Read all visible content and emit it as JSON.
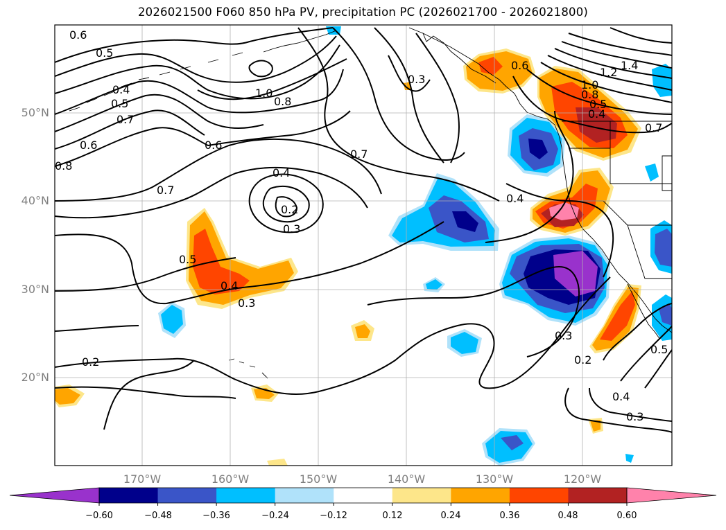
{
  "title": "2026021500 F060 850 hPa PV, precipitation PC (2026021700 - 2026021800)",
  "map": {
    "lat_labels": [
      "50°N",
      "40°N",
      "30°N",
      "20°N"
    ],
    "lon_labels": [
      "170°W",
      "160°W",
      "150°W",
      "140°W",
      "130°W",
      "120°W"
    ],
    "extent": {
      "lon_min": -180,
      "lon_max": -110,
      "lat_min": 10,
      "lat_max": 60
    },
    "contour_labels": [
      "0.6",
      "0.5",
      "0.4",
      "0.5",
      "0.7",
      "0.6",
      "0.8",
      "1.0",
      "0.8",
      "0.6",
      "0.7",
      "0.4",
      "0.2",
      "0.3",
      "0.7",
      "0.5",
      "0.4",
      "0.3",
      "0.2",
      "0.3",
      "0.6",
      "1.2",
      "1.4",
      "1.0",
      "0.8",
      "0.5",
      "0.4",
      "0.7",
      "0.4",
      "0.3",
      "0.2",
      "0.5",
      "0.4",
      "0.3"
    ]
  },
  "colorbar": {
    "ticks": [
      "−0.60",
      "−0.48",
      "−0.36",
      "−0.24",
      "−0.12",
      "0.12",
      "0.24",
      "0.36",
      "0.48",
      "0.60"
    ],
    "colors": [
      "#9932cc",
      "#00008b",
      "#3a55c8",
      "#00bfff",
      "#b0e2fa",
      "#ffffff",
      "#fde68a",
      "#ffa500",
      "#ff4500",
      "#b22222",
      "#ff82ab"
    ]
  },
  "colors": {
    "gridline": "#b0b0b0",
    "contour": "#000000",
    "coast": "#000000"
  }
}
